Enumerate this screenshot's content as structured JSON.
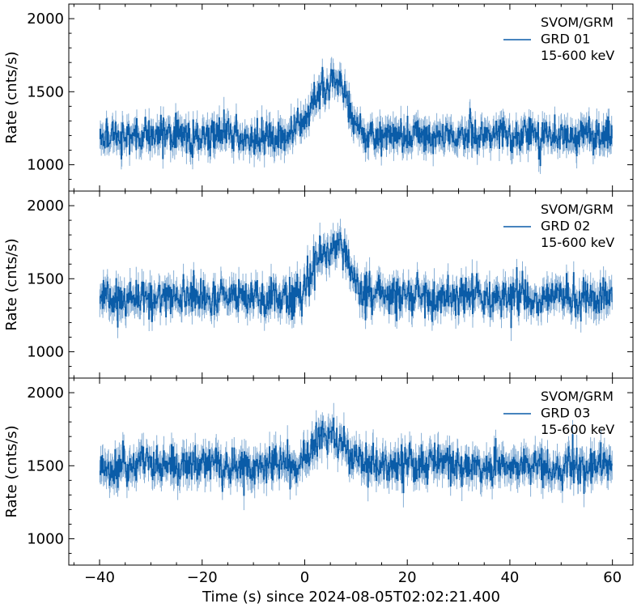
{
  "chart_data": {
    "type": "line",
    "xlabel": "Time (s) since 2024-08-05T02:02:21.400",
    "xlim": [
      -46,
      64
    ],
    "xticks": [
      -40,
      -20,
      0,
      20,
      40,
      60
    ],
    "xtick_labels": [
      "−40",
      "−20",
      "0",
      "20",
      "40",
      "60"
    ],
    "line_color": "#0a5ca8",
    "errorbar_color": "#7aa6d1",
    "panels": [
      {
        "ylabel": "Rate (cnts/s)",
        "ylim": [
          820,
          2100
        ],
        "yticks": [
          1000,
          1500,
          2000
        ],
        "legend": {
          "line1": "SVOM/GRM",
          "line2": "GRD 01",
          "line3": "15-600 keV"
        },
        "series": {
          "name": "GRD 01",
          "bin_width": 0.1,
          "x_start": -40,
          "x_end": 60,
          "baseline": 1200,
          "peak_height": 350,
          "peak_time": 5,
          "peak_rise": 3,
          "peak_decay": 4,
          "noise": 55,
          "error": 70
        }
      },
      {
        "ylabel": "Rate (cnts/s)",
        "ylim": [
          820,
          2100
        ],
        "yticks": [
          1000,
          1500,
          2000
        ],
        "legend": {
          "line1": "SVOM/GRM",
          "line2": "GRD 02",
          "line3": "15-600 keV"
        },
        "series": {
          "name": "GRD 02",
          "bin_width": 0.1,
          "x_start": -40,
          "x_end": 60,
          "baseline": 1370,
          "peak_height": 330,
          "peak_time": 5,
          "peak_rise": 3,
          "peak_decay": 4,
          "noise": 60,
          "error": 75
        }
      },
      {
        "ylabel": "Rate (cnts/s)",
        "ylim": [
          820,
          2100
        ],
        "yticks": [
          1000,
          1500,
          2000
        ],
        "legend": {
          "line1": "SVOM/GRM",
          "line2": "GRD 03",
          "line3": "15-600 keV"
        },
        "series": {
          "name": "GRD 03",
          "bin_width": 0.1,
          "x_start": -40,
          "x_end": 60,
          "baseline": 1500,
          "peak_height": 200,
          "peak_time": 4,
          "peak_rise": 3,
          "peak_decay": 5,
          "noise": 60,
          "error": 80
        }
      }
    ]
  }
}
